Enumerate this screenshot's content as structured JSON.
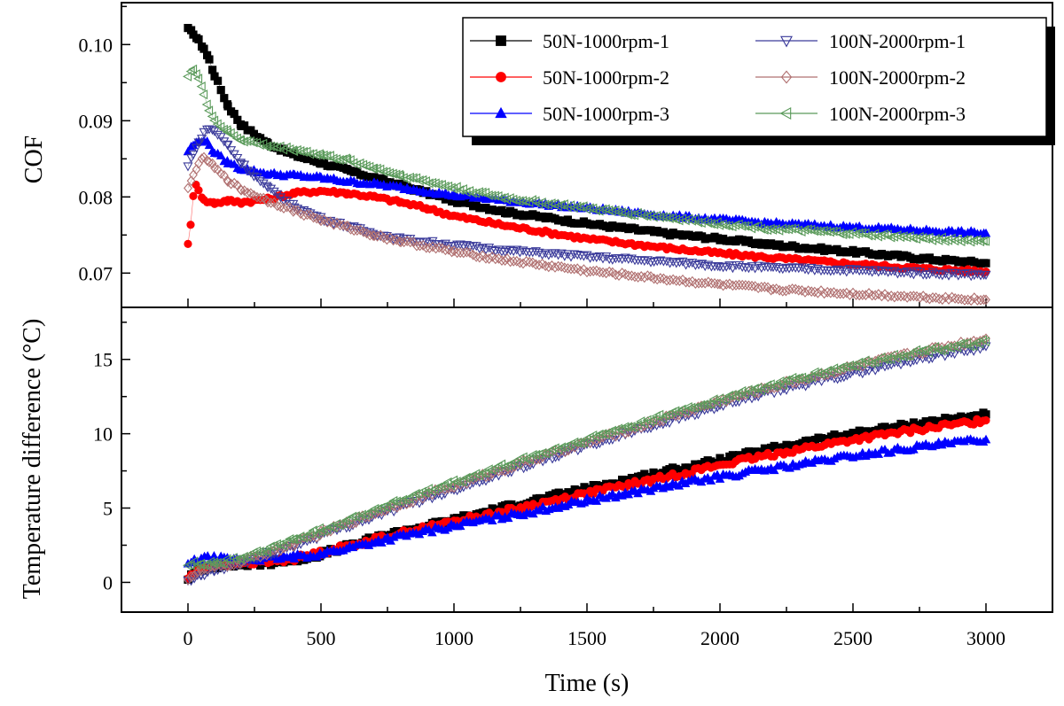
{
  "chart_data": [
    {
      "type": "scatter",
      "panel": "top",
      "title": "",
      "ylabel": "COF",
      "xlabel": "",
      "xlim": [
        -250,
        3250
      ],
      "ylim": [
        0.0655,
        0.1055
      ],
      "yticks": [
        0.07,
        0.08,
        0.09,
        0.1
      ],
      "ytick_labels": [
        "0.07",
        "0.08",
        "0.09",
        "0.10"
      ],
      "grid": false,
      "legend_position": "top-right",
      "series": [
        {
          "name": "50N-1000rpm-1",
          "color": "#000000",
          "marker": "square",
          "filled": true,
          "x": [
            0,
            20,
            40,
            60,
            80,
            100,
            150,
            200,
            300,
            400,
            500,
            600,
            700,
            800,
            1000,
            1200,
            1500,
            1800,
            2000,
            2200,
            2500,
            2800,
            3000
          ],
          "y": [
            0.102,
            0.1015,
            0.1005,
            0.0995,
            0.098,
            0.096,
            0.092,
            0.0895,
            0.087,
            0.0855,
            0.0845,
            0.0835,
            0.0825,
            0.0815,
            0.0795,
            0.078,
            0.0765,
            0.0752,
            0.0745,
            0.0737,
            0.0728,
            0.0718,
            0.0713
          ]
        },
        {
          "name": "50N-1000rpm-2",
          "color": "#ff0000",
          "marker": "circle",
          "filled": true,
          "x": [
            0,
            10,
            20,
            30,
            40,
            60,
            100,
            150,
            200,
            300,
            400,
            500,
            600,
            700,
            800,
            900,
            1000,
            1200,
            1500,
            1800,
            2000,
            2200,
            2500,
            2800,
            3000
          ],
          "y": [
            0.074,
            0.0762,
            0.08,
            0.0818,
            0.081,
            0.0795,
            0.0792,
            0.0795,
            0.0793,
            0.0797,
            0.0805,
            0.0808,
            0.0805,
            0.08,
            0.0793,
            0.0785,
            0.0775,
            0.0762,
            0.0745,
            0.0733,
            0.0726,
            0.072,
            0.0712,
            0.0705,
            0.0702
          ]
        },
        {
          "name": "50N-1000rpm-3",
          "color": "#0000ff",
          "marker": "triangle-up",
          "filled": true,
          "x": [
            0,
            20,
            40,
            60,
            80,
            100,
            150,
            200,
            300,
            400,
            500,
            600,
            700,
            800,
            1000,
            1200,
            1500,
            1800,
            2000,
            2200,
            2500,
            2800,
            3000
          ],
          "y": [
            0.086,
            0.0868,
            0.0872,
            0.0875,
            0.0868,
            0.0858,
            0.0845,
            0.0837,
            0.083,
            0.0828,
            0.0825,
            0.082,
            0.0817,
            0.0812,
            0.0802,
            0.0795,
            0.0785,
            0.0775,
            0.077,
            0.0765,
            0.076,
            0.0755,
            0.0752
          ]
        },
        {
          "name": "100N-2000rpm-1",
          "color": "#3a3a9a",
          "marker": "triangle-down",
          "filled": false,
          "x": [
            0,
            20,
            40,
            60,
            80,
            100,
            150,
            200,
            300,
            400,
            500,
            600,
            700,
            800,
            1000,
            1200,
            1500,
            1800,
            2000,
            2200,
            2500,
            2800,
            3000
          ],
          "y": [
            0.084,
            0.0858,
            0.087,
            0.0885,
            0.089,
            0.0887,
            0.0868,
            0.0845,
            0.0812,
            0.0788,
            0.0772,
            0.0762,
            0.0752,
            0.0745,
            0.0737,
            0.073,
            0.0722,
            0.0715,
            0.071,
            0.0707,
            0.0704,
            0.07,
            0.0698
          ]
        },
        {
          "name": "100N-2000rpm-2",
          "color": "#b07070",
          "marker": "diamond",
          "filled": false,
          "x": [
            0,
            20,
            40,
            60,
            80,
            100,
            150,
            200,
            300,
            400,
            500,
            600,
            700,
            800,
            1000,
            1200,
            1500,
            1800,
            2000,
            2200,
            2500,
            2800,
            3000
          ],
          "y": [
            0.081,
            0.0828,
            0.0845,
            0.085,
            0.0847,
            0.0838,
            0.0822,
            0.081,
            0.0795,
            0.0782,
            0.077,
            0.076,
            0.075,
            0.0742,
            0.0728,
            0.0717,
            0.0703,
            0.0692,
            0.0685,
            0.0679,
            0.0673,
            0.0668,
            0.0665
          ]
        },
        {
          "name": "100N-2000rpm-3",
          "color": "#5a9a5a",
          "marker": "triangle-left",
          "filled": false,
          "x": [
            0,
            20,
            40,
            60,
            80,
            100,
            150,
            200,
            300,
            400,
            500,
            600,
            700,
            800,
            1000,
            1200,
            1500,
            1800,
            2000,
            2200,
            2500,
            2800,
            3000
          ],
          "y": [
            0.096,
            0.0968,
            0.0955,
            0.0935,
            0.0915,
            0.09,
            0.0885,
            0.0875,
            0.0867,
            0.0862,
            0.0855,
            0.0848,
            0.0838,
            0.0828,
            0.0812,
            0.0798,
            0.0785,
            0.0773,
            0.0765,
            0.0758,
            0.0752,
            0.0745,
            0.0742
          ]
        }
      ]
    },
    {
      "type": "scatter",
      "panel": "bottom",
      "title": "",
      "ylabel": "Temperature difference (°C)",
      "xlabel": "Time (s)",
      "xlim": [
        -250,
        3250
      ],
      "ylim": [
        -2,
        18.5
      ],
      "xticks": [
        0,
        500,
        1000,
        1500,
        2000,
        2500,
        3000
      ],
      "xtick_labels": [
        "0",
        "500",
        "1000",
        "1500",
        "2000",
        "2500",
        "3000"
      ],
      "yticks": [
        0,
        5,
        10,
        15
      ],
      "ytick_labels": [
        "0",
        "5",
        "10",
        "15"
      ],
      "grid": false,
      "series": [
        {
          "name": "50N-1000rpm-1",
          "color": "#000000",
          "marker": "square",
          "filled": true,
          "x": [
            0,
            50,
            100,
            200,
            300,
            400,
            500,
            750,
            1000,
            1250,
            1500,
            1750,
            2000,
            2250,
            2500,
            2750,
            3000
          ],
          "y": [
            0.3,
            0.9,
            1.1,
            1.2,
            1.3,
            1.5,
            1.9,
            3.2,
            4.2,
            5.3,
            6.3,
            7.3,
            8.2,
            9.2,
            10.0,
            10.7,
            11.3
          ]
        },
        {
          "name": "50N-1000rpm-2",
          "color": "#ff0000",
          "marker": "circle",
          "filled": true,
          "x": [
            0,
            50,
            100,
            200,
            300,
            400,
            500,
            750,
            1000,
            1250,
            1500,
            1750,
            2000,
            2250,
            2500,
            2750,
            3000
          ],
          "y": [
            0.3,
            1.0,
            1.2,
            1.3,
            1.4,
            1.6,
            2.0,
            3.1,
            4.1,
            5.0,
            6.0,
            6.9,
            7.9,
            8.8,
            9.6,
            10.3,
            10.9
          ]
        },
        {
          "name": "50N-1000rpm-3",
          "color": "#0000ff",
          "marker": "triangle-up",
          "filled": true,
          "x": [
            0,
            50,
            100,
            200,
            300,
            400,
            500,
            750,
            1000,
            1250,
            1500,
            1750,
            2000,
            2250,
            2500,
            2750,
            3000
          ],
          "y": [
            1.2,
            1.6,
            1.6,
            1.5,
            1.6,
            1.7,
            1.9,
            2.9,
            3.8,
            4.6,
            5.5,
            6.3,
            7.1,
            7.8,
            8.5,
            9.1,
            9.6
          ]
        },
        {
          "name": "100N-2000rpm-1",
          "color": "#3a3a9a",
          "marker": "triangle-down",
          "filled": false,
          "x": [
            0,
            50,
            100,
            200,
            300,
            400,
            500,
            750,
            1000,
            1250,
            1500,
            1750,
            2000,
            2250,
            2500,
            2750,
            3000
          ],
          "y": [
            0.0,
            0.5,
            0.8,
            1.3,
            1.9,
            2.5,
            3.2,
            4.8,
            6.3,
            7.8,
            9.2,
            10.6,
            11.9,
            13.1,
            14.1,
            15.1,
            15.9
          ]
        },
        {
          "name": "100N-2000rpm-2",
          "color": "#b07070",
          "marker": "diamond",
          "filled": false,
          "x": [
            0,
            50,
            100,
            200,
            300,
            400,
            500,
            750,
            1000,
            1250,
            1500,
            1750,
            2000,
            2250,
            2500,
            2750,
            3000
          ],
          "y": [
            0.3,
            0.8,
            1.0,
            1.4,
            2.0,
            2.6,
            3.3,
            5.0,
            6.5,
            8.0,
            9.4,
            10.8,
            12.2,
            13.4,
            14.5,
            15.5,
            16.4
          ]
        },
        {
          "name": "100N-2000rpm-3",
          "color": "#5a9a5a",
          "marker": "triangle-left",
          "filled": false,
          "x": [
            0,
            50,
            100,
            200,
            300,
            400,
            500,
            750,
            1000,
            1250,
            1500,
            1750,
            2000,
            2250,
            2500,
            2750,
            3000
          ],
          "y": [
            1.2,
            1.3,
            1.3,
            1.6,
            2.2,
            2.9,
            3.5,
            5.2,
            6.7,
            8.2,
            9.6,
            11.0,
            12.3,
            13.5,
            14.6,
            15.5,
            16.2
          ]
        }
      ]
    }
  ]
}
